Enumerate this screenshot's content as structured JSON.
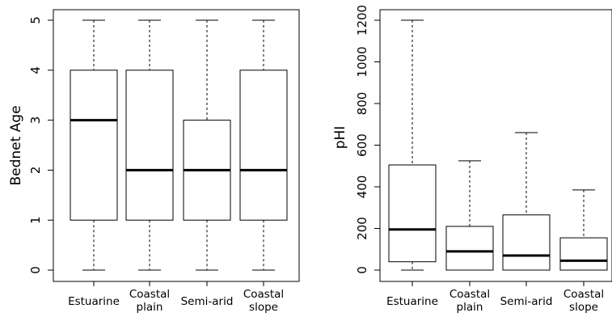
{
  "chart_data": [
    {
      "type": "boxplot",
      "ylabel": "Bednet Age",
      "xlabel": "",
      "ylim": [
        0,
        5
      ],
      "yticks": [
        "0",
        "1",
        "2",
        "3",
        "4",
        "5"
      ],
      "categories": [
        [
          "Estuarine"
        ],
        [
          "Coastal",
          "plain"
        ],
        [
          "Semi-arid"
        ],
        [
          "Coastal",
          "slope"
        ]
      ],
      "boxes": [
        {
          "min": 0,
          "q1": 1,
          "median": 3,
          "q3": 4,
          "max": 5
        },
        {
          "min": 0,
          "q1": 1,
          "median": 2,
          "q3": 4,
          "max": 5
        },
        {
          "min": 0,
          "q1": 1,
          "median": 2,
          "q3": 3,
          "max": 5
        },
        {
          "min": 0,
          "q1": 1,
          "median": 2,
          "q3": 4,
          "max": 5
        }
      ]
    },
    {
      "type": "boxplot",
      "ylabel": "pHI",
      "xlabel": "",
      "ylim": [
        0,
        1200
      ],
      "yticks": [
        "0",
        "200",
        "400",
        "600",
        "800",
        "1000",
        "1200"
      ],
      "categories": [
        [
          "Estuarine"
        ],
        [
          "Coastal",
          "plain"
        ],
        [
          "Semi-arid"
        ],
        [
          "Coastal",
          "slope"
        ]
      ],
      "boxes": [
        {
          "min": 0,
          "q1": 40,
          "median": 195,
          "q3": 505,
          "max": 1200
        },
        {
          "min": 0,
          "q1": 0,
          "median": 90,
          "q3": 210,
          "max": 525
        },
        {
          "min": 0,
          "q1": 0,
          "median": 70,
          "q3": 265,
          "max": 660
        },
        {
          "min": 0,
          "q1": 0,
          "median": 45,
          "q3": 155,
          "max": 385
        }
      ]
    }
  ]
}
